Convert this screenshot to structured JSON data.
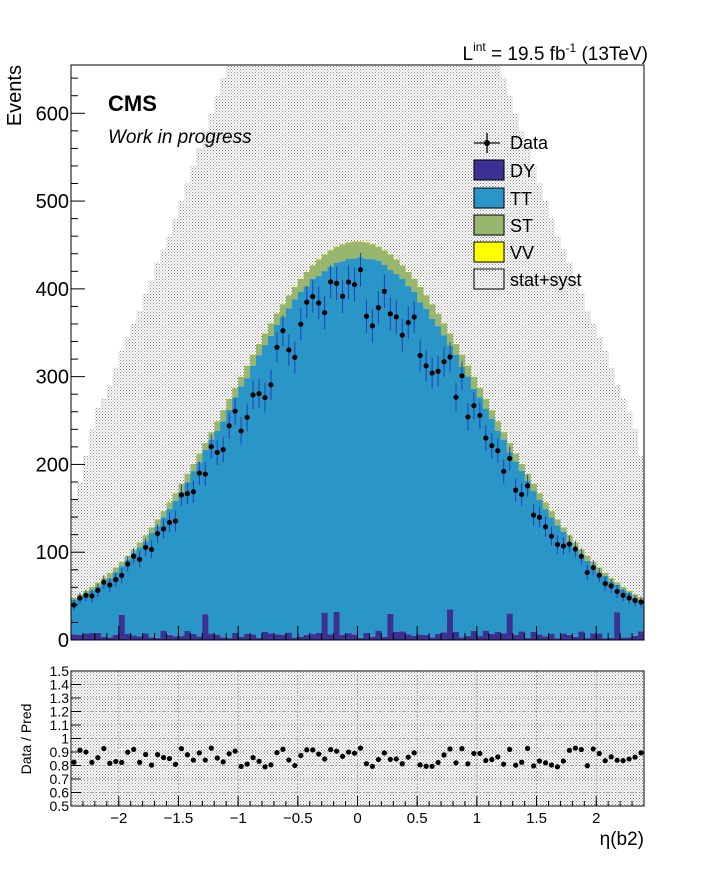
{
  "header": {
    "lumi_prefix": "L",
    "lumi_sup": "int",
    "lumi_mid": " = 19.5 fb",
    "lumi_exp": "-1",
    "lumi_suffix": " (13TeV)"
  },
  "labels": {
    "experiment": "CMS",
    "status": "Work in progress"
  },
  "colors": {
    "DY": "#3a3193",
    "TT": "#2a96c8",
    "ST": "#98b66e",
    "VV": "#ffff00",
    "band": "#b4b4b4",
    "data": "#000000",
    "errbar": "#1f3fbf"
  },
  "chart_data": [
    {
      "type": "bar",
      "stacked": true,
      "title": "",
      "xlabel": "η(b2)",
      "ylabel": "Events",
      "xlim": [
        -2.4,
        2.4
      ],
      "ylim": [
        0,
        655
      ],
      "xticks": [
        -2,
        -1.5,
        -1,
        -0.5,
        0,
        0.5,
        1,
        1.5,
        2
      ],
      "xtick_labels": [
        "−2",
        "−1.5",
        "−1",
        "−0.5",
        "0",
        "0.5",
        "1",
        "1.5",
        "2"
      ],
      "yticks": [
        0,
        100,
        200,
        300,
        400,
        500,
        600
      ],
      "ytick_labels": [
        "0",
        "100",
        "200",
        "300",
        "400",
        "500",
        "600"
      ],
      "bin_width": 0.05,
      "bin_edges_range": [
        -2.4,
        2.4
      ],
      "legend": {
        "position": "top-right",
        "entries": [
          "Data",
          "DY",
          "TT",
          "ST",
          "VV",
          "stat+syst"
        ]
      },
      "series": [
        {
          "name": "DY",
          "kind": "stack"
        },
        {
          "name": "TT",
          "kind": "stack"
        },
        {
          "name": "ST",
          "kind": "stack"
        },
        {
          "name": "VV",
          "kind": "stack"
        },
        {
          "name": "stat+syst",
          "kind": "band",
          "values": [
            160,
            180,
            210,
            240,
            265,
            275,
            290,
            310,
            330,
            345,
            360,
            375,
            395,
            410,
            430,
            445,
            460,
            480,
            500,
            520,
            540,
            560,
            580,
            600,
            620,
            640,
            655,
            655,
            655,
            655,
            655,
            655,
            655,
            655,
            655,
            655,
            655,
            655,
            655,
            655,
            655,
            655,
            655,
            655,
            655,
            655,
            655,
            655,
            655,
            655,
            655,
            655,
            655,
            655,
            655,
            655,
            655,
            655,
            655,
            655,
            655,
            655,
            655,
            655,
            655,
            655,
            655,
            655,
            655,
            655,
            655,
            655,
            640,
            620,
            600,
            580,
            560,
            540,
            520,
            500,
            480,
            460,
            445,
            430,
            410,
            395,
            375,
            360,
            345,
            330,
            310,
            290,
            275,
            260,
            240,
            210
          ]
        },
        {
          "name": "Data",
          "kind": "points"
        }
      ]
    },
    {
      "type": "scatter",
      "title": "",
      "xlabel": "η(b2)",
      "ylabel": "Data / Pred",
      "xlim": [
        -2.4,
        2.4
      ],
      "ylim": [
        0.5,
        1.5
      ],
      "yticks": [
        0.5,
        0.6,
        0.7,
        0.8,
        0.9,
        1.0,
        1.1,
        1.2,
        1.3,
        1.4,
        1.5
      ],
      "ytick_labels": [
        "0.5",
        "0.6",
        "0.7",
        "0.8",
        "0.9",
        "1",
        "1.1",
        "1.2",
        "1.3",
        "1.4",
        "1.5"
      ]
    }
  ]
}
